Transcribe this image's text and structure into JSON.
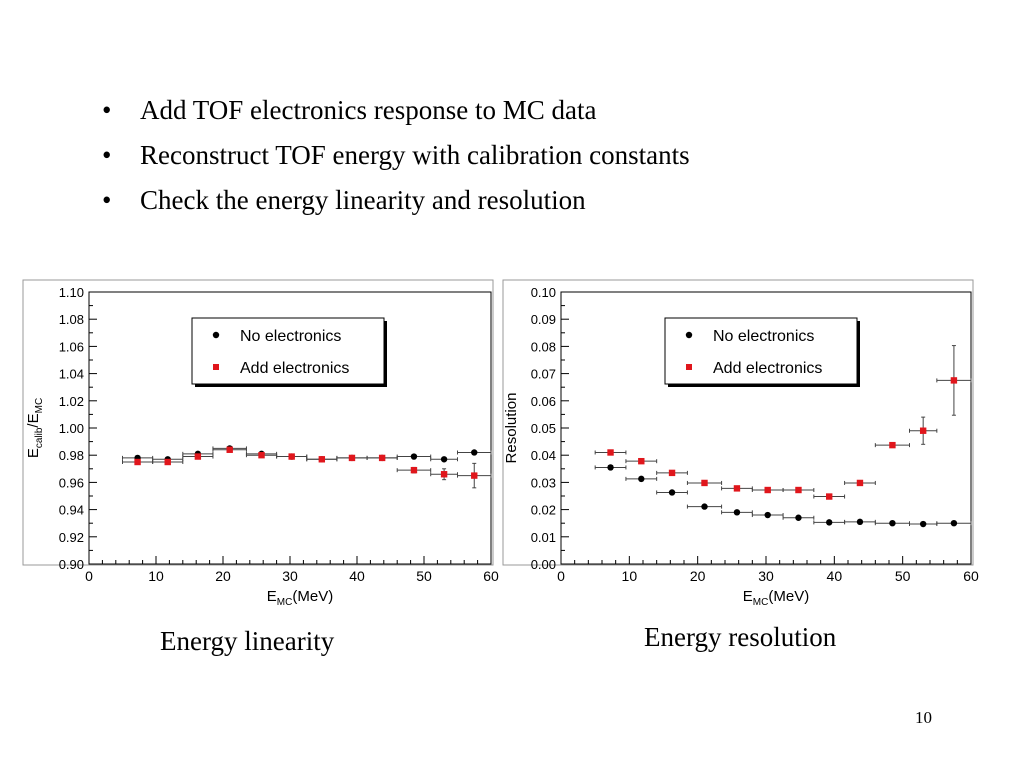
{
  "slide": {
    "bullets": [
      "Add TOF electronics response to MC data",
      "Reconstruct TOF energy with calibration constants",
      "Check the energy linearity and resolution"
    ],
    "bullet_glyph": "•",
    "caption_left": "Energy linearity",
    "caption_right": "Energy resolution",
    "page_number": "10"
  },
  "chart_data": [
    {
      "type": "scatter",
      "title": "",
      "xlabel": {
        "base": "E",
        "sub": "MC",
        "rest": "(MeV)"
      },
      "ylabel": {
        "base1": "E",
        "sub1": "calib",
        "slash": "/E",
        "sub2": "MC"
      },
      "xlim": [
        0,
        60
      ],
      "ylim": [
        0.9,
        1.1
      ],
      "x_ticks": [
        "0",
        "10",
        "20",
        "30",
        "40",
        "50",
        "60"
      ],
      "y_ticks": [
        "0.90",
        "0.92",
        "0.94",
        "0.96",
        "0.98",
        "1.00",
        "1.02",
        "1.04",
        "1.06",
        "1.08",
        "1.10"
      ],
      "grid": false,
      "legend_position": "top-center",
      "series": [
        {
          "name": "No electronics",
          "marker": "circle",
          "color": "#000000",
          "points": [
            {
              "x": 7.25,
              "y": 0.978,
              "xerr": 2.25,
              "yerr": 0.001
            },
            {
              "x": 11.75,
              "y": 0.977,
              "xerr": 2.25,
              "yerr": 0.001
            },
            {
              "x": 16.25,
              "y": 0.981,
              "xerr": 2.25,
              "yerr": 0.001
            },
            {
              "x": 21.0,
              "y": 0.985,
              "xerr": 2.5,
              "yerr": 0.001
            },
            {
              "x": 25.75,
              "y": 0.981,
              "xerr": 2.25,
              "yerr": 0.001
            },
            {
              "x": 30.25,
              "y": 0.979,
              "xerr": 2.25,
              "yerr": 0.001
            },
            {
              "x": 34.75,
              "y": 0.977,
              "xerr": 2.25,
              "yerr": 0.001
            },
            {
              "x": 39.25,
              "y": 0.978,
              "xerr": 2.25,
              "yerr": 0.001
            },
            {
              "x": 43.75,
              "y": 0.978,
              "xerr": 2.25,
              "yerr": 0.001
            },
            {
              "x": 48.5,
              "y": 0.979,
              "xerr": 2.5,
              "yerr": 0.001
            },
            {
              "x": 53.0,
              "y": 0.977,
              "xerr": 2.0,
              "yerr": 0.001
            },
            {
              "x": 57.5,
              "y": 0.982,
              "xerr": 2.5,
              "yerr": 0.001
            }
          ]
        },
        {
          "name": "Add electronics",
          "marker": "square",
          "color": "#e0161c",
          "points": [
            {
              "x": 7.25,
              "y": 0.975,
              "xerr": 2.25,
              "yerr": 0.001
            },
            {
              "x": 11.75,
              "y": 0.975,
              "xerr": 2.25,
              "yerr": 0.001
            },
            {
              "x": 16.25,
              "y": 0.979,
              "xerr": 2.25,
              "yerr": 0.001
            },
            {
              "x": 21.0,
              "y": 0.984,
              "xerr": 2.5,
              "yerr": 0.001
            },
            {
              "x": 25.75,
              "y": 0.98,
              "xerr": 2.25,
              "yerr": 0.001
            },
            {
              "x": 30.25,
              "y": 0.979,
              "xerr": 2.25,
              "yerr": 0.001
            },
            {
              "x": 34.75,
              "y": 0.977,
              "xerr": 2.25,
              "yerr": 0.001
            },
            {
              "x": 39.25,
              "y": 0.978,
              "xerr": 2.25,
              "yerr": 0.001
            },
            {
              "x": 43.75,
              "y": 0.978,
              "xerr": 2.25,
              "yerr": 0.001
            },
            {
              "x": 48.5,
              "y": 0.969,
              "xerr": 2.5,
              "yerr": 0.002
            },
            {
              "x": 53.0,
              "y": 0.966,
              "xerr": 2.0,
              "yerr": 0.004
            },
            {
              "x": 57.5,
              "y": 0.965,
              "xerr": 2.5,
              "yerr": 0.009
            }
          ]
        }
      ]
    },
    {
      "type": "scatter",
      "title": "",
      "xlabel": {
        "base": "E",
        "sub": "MC",
        "rest": "(MeV)"
      },
      "ylabel": {
        "text": "Resolution"
      },
      "xlim": [
        0,
        60
      ],
      "ylim": [
        0.0,
        0.1
      ],
      "x_ticks": [
        "0",
        "10",
        "20",
        "30",
        "40",
        "50",
        "60"
      ],
      "y_ticks": [
        "0.00",
        "0.01",
        "0.02",
        "0.03",
        "0.04",
        "0.05",
        "0.06",
        "0.07",
        "0.08",
        "0.09",
        "0.10"
      ],
      "grid": false,
      "legend_position": "top-right",
      "series": [
        {
          "name": "No electronics",
          "marker": "circle",
          "color": "#000000",
          "points": [
            {
              "x": 7.25,
              "y": 0.0355,
              "xerr": 2.25,
              "yerr": 0.0005
            },
            {
              "x": 11.75,
              "y": 0.0313,
              "xerr": 2.25,
              "yerr": 0.0005
            },
            {
              "x": 16.25,
              "y": 0.0263,
              "xerr": 2.25,
              "yerr": 0.0005
            },
            {
              "x": 21.0,
              "y": 0.0211,
              "xerr": 2.5,
              "yerr": 0.0005
            },
            {
              "x": 25.75,
              "y": 0.019,
              "xerr": 2.25,
              "yerr": 0.0005
            },
            {
              "x": 30.25,
              "y": 0.018,
              "xerr": 2.25,
              "yerr": 0.0005
            },
            {
              "x": 34.75,
              "y": 0.017,
              "xerr": 2.25,
              "yerr": 0.0005
            },
            {
              "x": 39.25,
              "y": 0.0153,
              "xerr": 2.25,
              "yerr": 0.0005
            },
            {
              "x": 43.75,
              "y": 0.0155,
              "xerr": 2.25,
              "yerr": 0.0005
            },
            {
              "x": 48.5,
              "y": 0.015,
              "xerr": 2.5,
              "yerr": 0.0005
            },
            {
              "x": 53.0,
              "y": 0.0147,
              "xerr": 2.0,
              "yerr": 0.0005
            },
            {
              "x": 57.5,
              "y": 0.015,
              "xerr": 2.5,
              "yerr": 0.0005
            }
          ]
        },
        {
          "name": "Add electronics",
          "marker": "square",
          "color": "#e0161c",
          "points": [
            {
              "x": 7.25,
              "y": 0.041,
              "xerr": 2.25,
              "yerr": 0.0005
            },
            {
              "x": 11.75,
              "y": 0.0378,
              "xerr": 2.25,
              "yerr": 0.0005
            },
            {
              "x": 16.25,
              "y": 0.0335,
              "xerr": 2.25,
              "yerr": 0.0005
            },
            {
              "x": 21.0,
              "y": 0.0298,
              "xerr": 2.5,
              "yerr": 0.0005
            },
            {
              "x": 25.75,
              "y": 0.0278,
              "xerr": 2.25,
              "yerr": 0.0005
            },
            {
              "x": 30.25,
              "y": 0.0272,
              "xerr": 2.25,
              "yerr": 0.0005
            },
            {
              "x": 34.75,
              "y": 0.0272,
              "xerr": 2.25,
              "yerr": 0.0005
            },
            {
              "x": 39.25,
              "y": 0.0248,
              "xerr": 2.25,
              "yerr": 0.0005
            },
            {
              "x": 43.75,
              "y": 0.0298,
              "xerr": 2.25,
              "yerr": 0.0005
            },
            {
              "x": 48.5,
              "y": 0.0437,
              "xerr": 2.5,
              "yerr": 0.0008
            },
            {
              "x": 53.0,
              "y": 0.049,
              "xerr": 2.0,
              "yerr": 0.005
            },
            {
              "x": 57.5,
              "y": 0.0675,
              "xerr": 2.5,
              "yerr": 0.0128
            }
          ]
        }
      ]
    }
  ]
}
